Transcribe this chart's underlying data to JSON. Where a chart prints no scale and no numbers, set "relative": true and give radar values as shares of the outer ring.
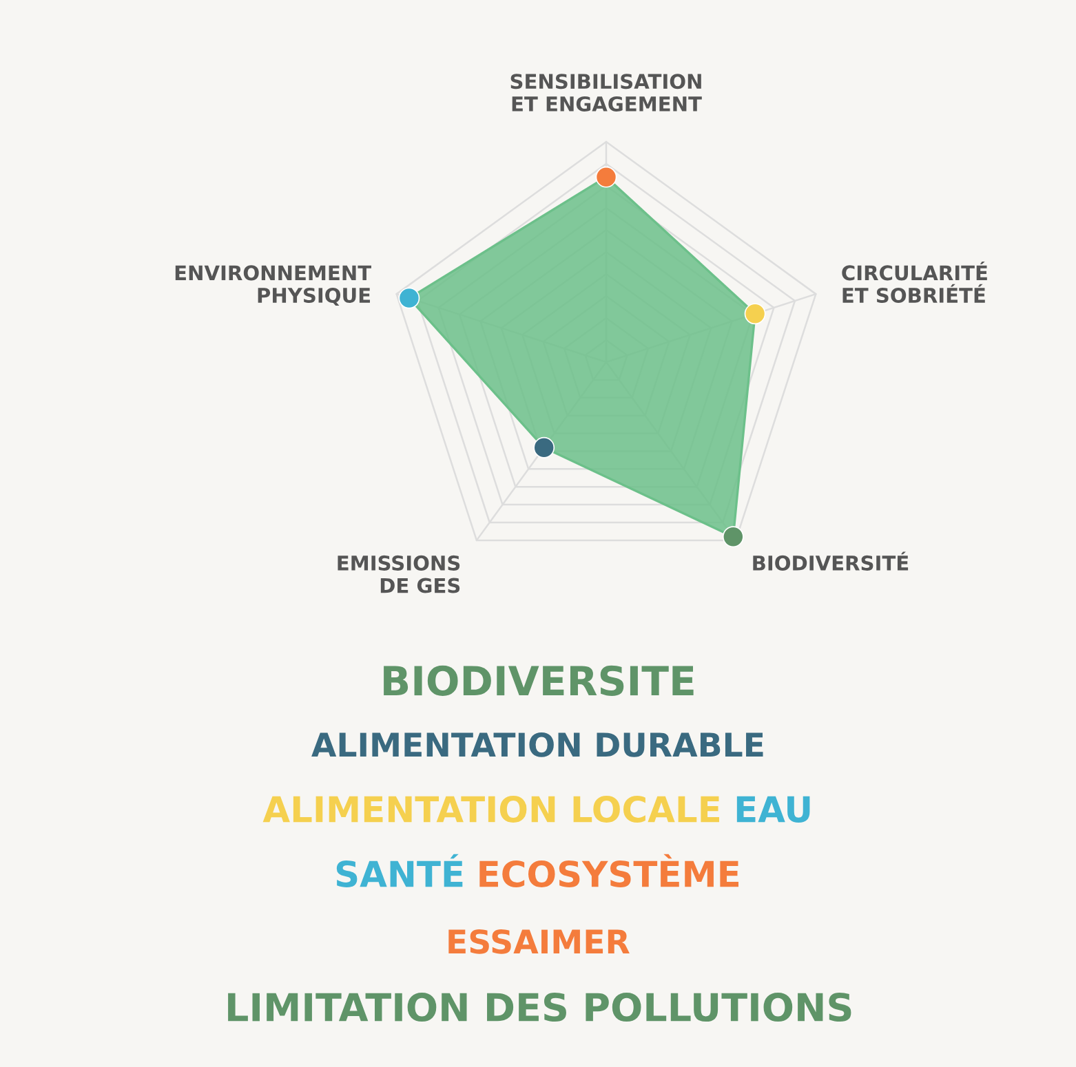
{
  "chart_data": {
    "type": "radar",
    "relative": true,
    "grid": true,
    "marker": "circle",
    "categories": [
      "SENSIBILISATION\nET ENGAGEMENT",
      "CIRCULARITÉ\nET SOBRIÉTÉ",
      "BIODIVERSITÉ",
      "EMISSIONS\nDE GES",
      "ENVIRONNEMENT\nPHYSIQUE"
    ],
    "series": [
      {
        "color": "#6cc08a",
        "colors": [
          "#f47c3c",
          "#f5d04f",
          "#5f9468",
          "#3a6a80",
          "#3fb3d3"
        ],
        "values": [
          0.84,
          0.71,
          0.98,
          0.48,
          0.94
        ]
      }
    ],
    "annotations": [
      "BIODIVERSITE",
      "ALIMENTATION DURABLE",
      "ALIMENTATION LOCALE",
      "EAU",
      "SANTÉ",
      "ECOSYSTÈME",
      "ESSAIMER",
      "LIMITATION DES POLLUTIONS"
    ]
  }
}
